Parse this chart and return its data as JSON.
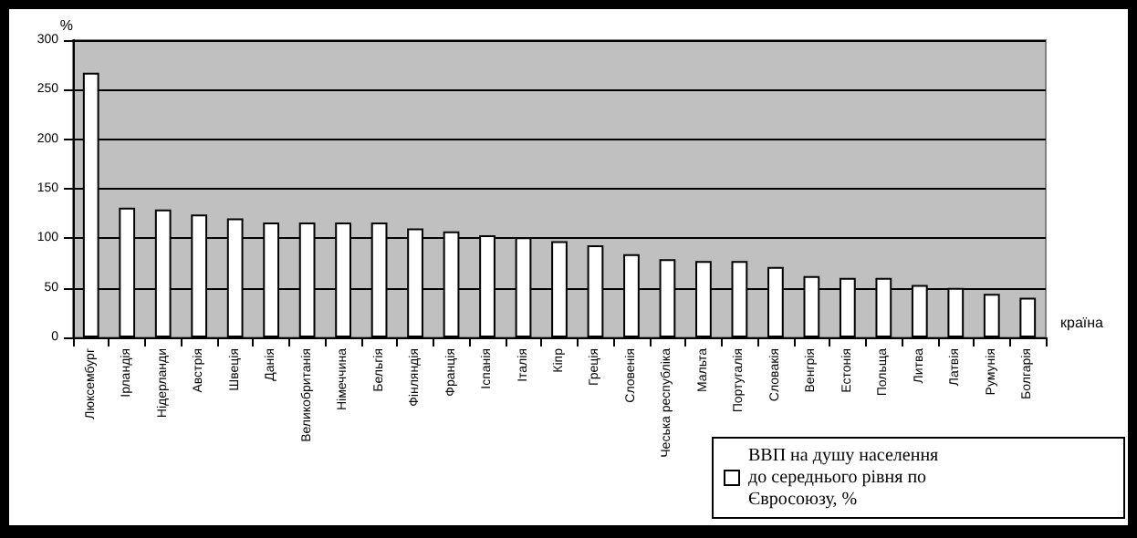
{
  "chart_data": {
    "type": "bar",
    "ylabel": "%",
    "xlabel": "країна",
    "categories": [
      "Люксембург",
      "Ірландія",
      "Нідерланди",
      "Австрія",
      "Швеція",
      "Данія",
      "Великобританія",
      "Німеччина",
      "Бельгія",
      "Фінляндія",
      "Франція",
      "Іспанія",
      "Італія",
      "Кіпр",
      "Греція",
      "Словенія",
      "Чеська республіка",
      "Мальта",
      "Португалія",
      "Словакія",
      "Венгрія",
      "Естонія",
      "Польща",
      "Литва",
      "Латвія",
      "Румунія",
      "Болгарія"
    ],
    "series": [
      {
        "name": "ВВП на душу населення до середнього рівня по Євросоюзу, %",
        "color": "#ffffff",
        "values": [
          267,
          131,
          129,
          124,
          120,
          116,
          116,
          116,
          116,
          110,
          107,
          103,
          101,
          97,
          93,
          84,
          79,
          77,
          77,
          71,
          62,
          60,
          60,
          53,
          50,
          44,
          40
        ]
      }
    ],
    "ylim": [
      0,
      300
    ],
    "yticks": [
      0,
      50,
      100,
      150,
      200,
      250,
      300
    ],
    "grid": "y",
    "legend": "bottom right"
  }
}
